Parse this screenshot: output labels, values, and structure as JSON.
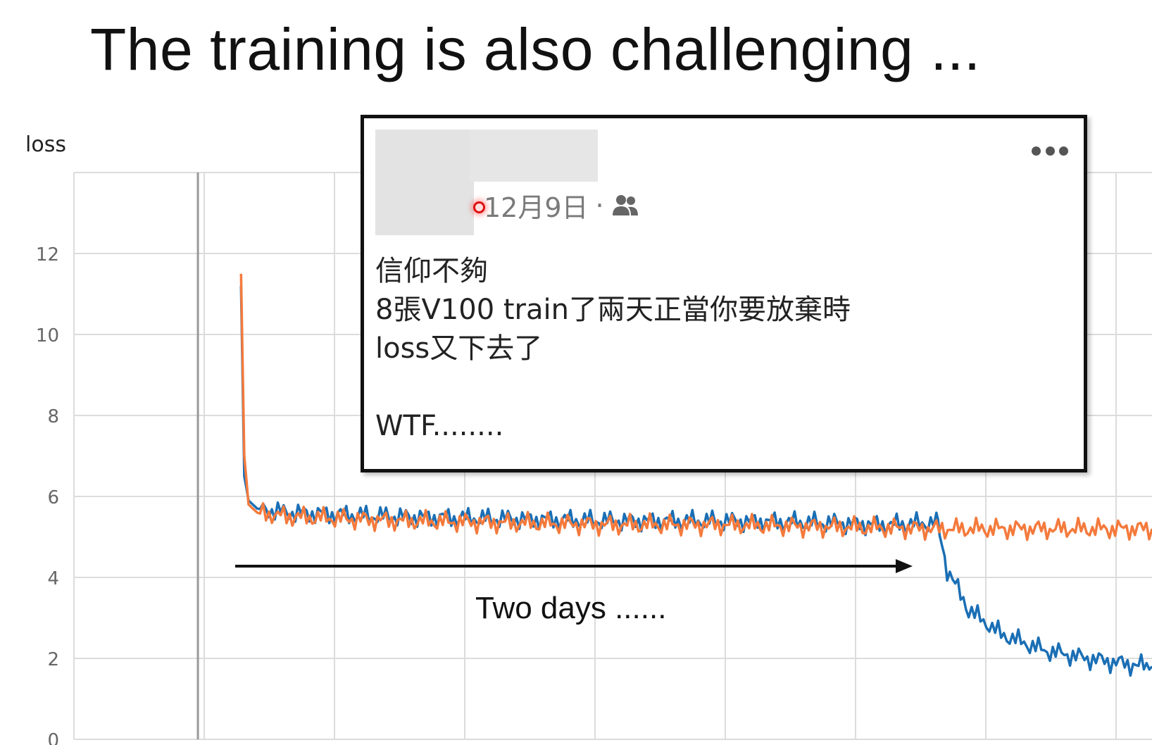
{
  "slide": {
    "title": "The training is also challenging ..."
  },
  "post": {
    "date": "12月9日",
    "separator": "·",
    "audience_icon": "friends-icon",
    "more_icon": "more-horizontal-icon",
    "lines": [
      "信仰不夠",
      "8張V100 train了兩天正當你要放棄時",
      "loss又下去了",
      "",
      "WTF........"
    ]
  },
  "annotation": {
    "label": "Two days ......"
  },
  "chart_data": {
    "type": "line",
    "ylabel": "loss",
    "ylim": [
      0,
      14
    ],
    "yticks": [
      0,
      2,
      4,
      6,
      8,
      10,
      12
    ],
    "xlim": [
      0,
      1
    ],
    "grid": true,
    "colors": {
      "blue": "#1a6fb5",
      "orange": "#f47a3c"
    },
    "series": [
      {
        "color": "blue",
        "x": [
          0.155,
          0.158,
          0.162,
          0.17,
          0.2,
          0.3,
          0.4,
          0.5,
          0.6,
          0.7,
          0.75,
          0.8,
          0.803,
          0.81,
          0.83,
          0.86,
          0.9,
          0.94,
          0.98,
          1.0
        ],
        "y": [
          11.2,
          6.5,
          5.9,
          5.7,
          5.6,
          5.5,
          5.45,
          5.4,
          5.4,
          5.35,
          5.3,
          5.35,
          5.1,
          4.2,
          3.2,
          2.6,
          2.2,
          2.0,
          1.85,
          1.8
        ]
      },
      {
        "color": "orange",
        "x": [
          0.155,
          0.158,
          0.162,
          0.17,
          0.2,
          0.3,
          0.4,
          0.5,
          0.6,
          0.7,
          0.8,
          0.9,
          1.0
        ],
        "y": [
          11.5,
          7.0,
          5.8,
          5.6,
          5.5,
          5.4,
          5.35,
          5.3,
          5.3,
          5.25,
          5.2,
          5.2,
          5.2
        ]
      }
    ]
  }
}
